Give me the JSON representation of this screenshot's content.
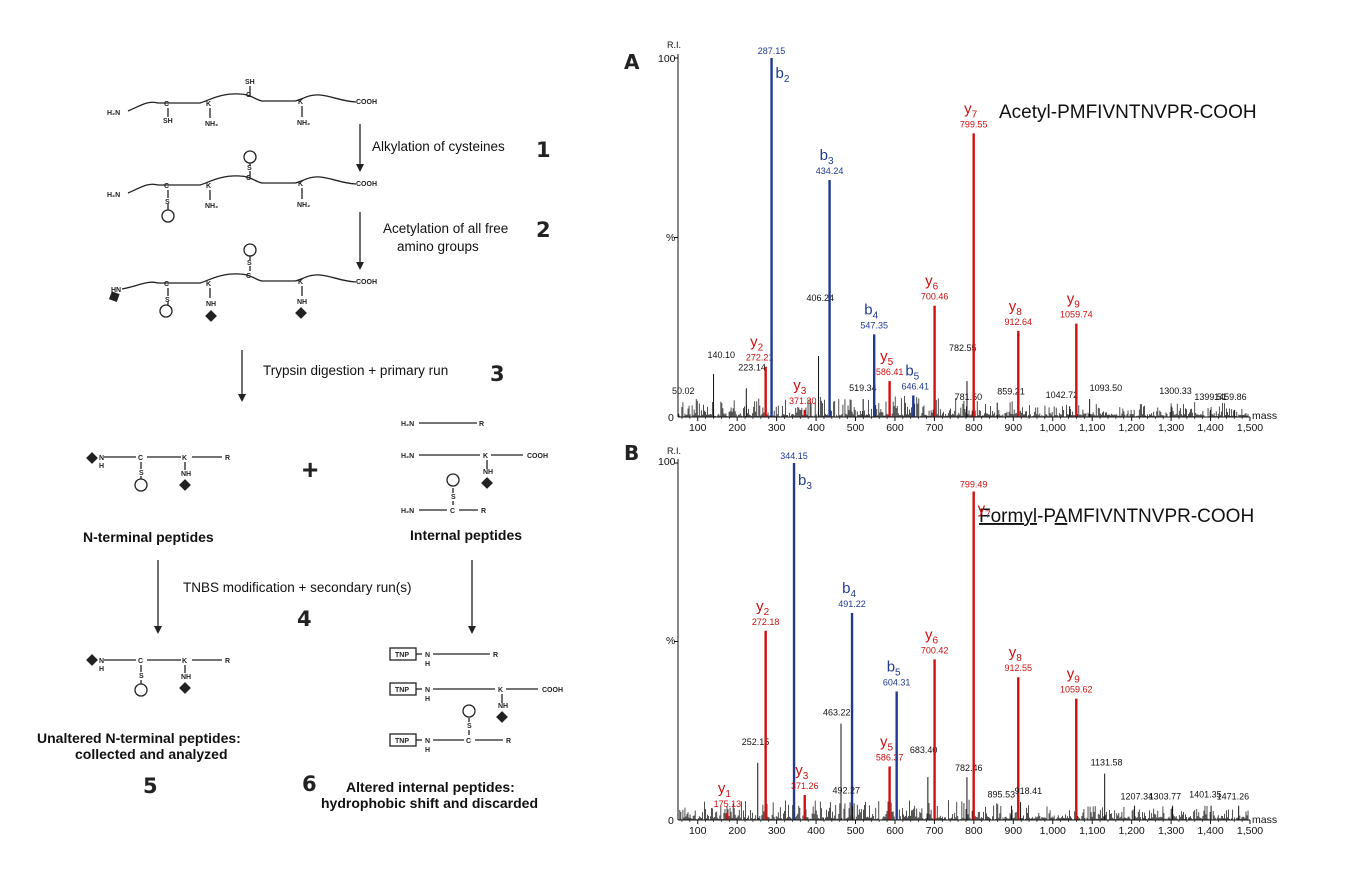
{
  "scheme": {
    "peptide_labels": {
      "h2n": "H₂N",
      "cooh": "COOH",
      "sh": "SH",
      "s": "S",
      "nh2": "NH₂",
      "nh": "NH",
      "hn": "HN",
      "c": "C",
      "k": "K",
      "r": "R",
      "n": "N",
      "h": "H",
      "tnp": "TNP"
    },
    "steps": [
      {
        "num": "1",
        "lines": [
          "Alkylation of cysteines"
        ]
      },
      {
        "num": "2",
        "lines": [
          "Acetylation of all free",
          "amino groups"
        ]
      },
      {
        "num": "3",
        "lines": [
          "Trypsin digestion + primary run"
        ]
      },
      {
        "num": "4",
        "lines": [
          "TNBS modification + secondary run(s)"
        ]
      }
    ],
    "plus": "+",
    "nterm_title": "N-terminal peptides",
    "internal_title": "Internal peptides",
    "unaltered_lines": [
      "Unaltered N-terminal peptides:",
      "collected and analyzed"
    ],
    "unaltered_num": "5",
    "altered_num": "6",
    "altered_lines": [
      "Altered internal peptides:",
      "hydrophobic shift and discarded"
    ]
  },
  "chart_data": [
    {
      "type": "bar",
      "panel": "A",
      "title": "Acetyl-PMFIVNTNVPR-COOH",
      "xlabel": "mass",
      "ylabel": "R.I.",
      "ylabel_mid": "%",
      "xlim": [
        50,
        1500
      ],
      "ylim": [
        0,
        100
      ],
      "y_ticks": [
        "100",
        "0"
      ],
      "x_ticks": [
        "100",
        "200",
        "300",
        "400",
        "500",
        "600",
        "700",
        "800",
        "900",
        "1,000",
        "1,100",
        "1,200",
        "1,300",
        "1,400",
        "1,500"
      ],
      "x_tick_values": [
        100,
        200,
        300,
        400,
        500,
        600,
        700,
        800,
        900,
        1000,
        1100,
        1200,
        1300,
        1400,
        1500
      ],
      "colors": {
        "b": "#1f3a93",
        "y": "#d01010",
        "other": "#111111"
      },
      "peaks": [
        {
          "mz": 50.02,
          "ri": 3,
          "label": "50.02",
          "kind": "other"
        },
        {
          "mz": 140.1,
          "ri": 12,
          "label": "140.10",
          "kind": "other"
        },
        {
          "mz": 223.14,
          "ri": 8,
          "label": "223.14",
          "kind": "other"
        },
        {
          "mz": 272.21,
          "ri": 14,
          "label": "272.21",
          "kind": "y",
          "ion": "y",
          "sub": "2"
        },
        {
          "mz": 287.15,
          "ri": 100,
          "label": "287.15",
          "kind": "b",
          "ion": "b",
          "sub": "2"
        },
        {
          "mz": 371.3,
          "ri": 2,
          "label": "371.30",
          "kind": "y",
          "ion": "y",
          "sub": "3"
        },
        {
          "mz": 406.24,
          "ri": 17,
          "label": "406.24",
          "kind": "other"
        },
        {
          "mz": 434.24,
          "ri": 66,
          "label": "434.24",
          "kind": "b",
          "ion": "b",
          "sub": "3"
        },
        {
          "mz": 519.34,
          "ri": 5,
          "label": "519.34",
          "kind": "other"
        },
        {
          "mz": 547.35,
          "ri": 23,
          "label": "547.35",
          "kind": "b",
          "ion": "b",
          "sub": "4"
        },
        {
          "mz": 586.41,
          "ri": 10,
          "label": "586.41",
          "kind": "y",
          "ion": "y",
          "sub": "5"
        },
        {
          "mz": 646.41,
          "ri": 6,
          "label": "646.41",
          "kind": "b",
          "ion": "b",
          "sub": "5"
        },
        {
          "mz": 700.46,
          "ri": 31,
          "label": "700.46",
          "kind": "y",
          "ion": "y",
          "sub": "6"
        },
        {
          "mz": 781.5,
          "ri": 3,
          "label": "781.50",
          "kind": "other"
        },
        {
          "mz": 782.55,
          "ri": 10,
          "label": "782.55",
          "kind": "other"
        },
        {
          "mz": 799.55,
          "ri": 79,
          "label": "799.55",
          "kind": "y",
          "ion": "y",
          "sub": "7"
        },
        {
          "mz": 859.21,
          "ri": 4,
          "label": "859.21",
          "kind": "other"
        },
        {
          "mz": 912.64,
          "ri": 24,
          "label": "912.64",
          "kind": "y",
          "ion": "y",
          "sub": "8"
        },
        {
          "mz": 1042.72,
          "ri": 3,
          "label": "1042.72",
          "kind": "other"
        },
        {
          "mz": 1059.74,
          "ri": 26,
          "label": "1059.74",
          "kind": "y",
          "ion": "y",
          "sub": "9"
        },
        {
          "mz": 1093.5,
          "ri": 5,
          "label": "1093.50",
          "kind": "other"
        },
        {
          "mz": 1300.33,
          "ri": 3,
          "label": "1300.33",
          "kind": "other"
        },
        {
          "mz": 1399.51,
          "ri": 2,
          "label": "1399.51",
          "kind": "other"
        },
        {
          "mz": 1459.86,
          "ri": 2,
          "label": "1459.86",
          "kind": "other"
        }
      ]
    },
    {
      "type": "bar",
      "panel": "B",
      "title_underlined": "Formyl",
      "title_mid": "-P",
      "title_underlined2": "A",
      "title_rest": "MFIVNTNVPR-COOH",
      "xlabel": "mass",
      "ylabel": "R.I.",
      "ylabel_mid": "%",
      "xlim": [
        50,
        1500
      ],
      "ylim": [
        0,
        100
      ],
      "y_ticks": [
        "100",
        "0"
      ],
      "x_ticks": [
        "100",
        "200",
        "300",
        "400",
        "500",
        "600",
        "700",
        "800",
        "900",
        "1,000",
        "1,100",
        "1,200",
        "1,300",
        "1,400",
        "1,500"
      ],
      "x_tick_values": [
        100,
        200,
        300,
        400,
        500,
        600,
        700,
        800,
        900,
        1000,
        1100,
        1200,
        1300,
        1400,
        1500
      ],
      "colors": {
        "b": "#1f3a93",
        "y": "#d01010",
        "other": "#111111"
      },
      "peaks": [
        {
          "mz": 175.13,
          "ri": 2,
          "label": "175.13",
          "kind": "y",
          "ion": "y",
          "sub": "1"
        },
        {
          "mz": 252.15,
          "ri": 16,
          "label": "252.15",
          "kind": "other"
        },
        {
          "mz": 272.18,
          "ri": 53,
          "label": "272.18",
          "kind": "y",
          "ion": "y",
          "sub": "2"
        },
        {
          "mz": 344.15,
          "ri": 100,
          "label": "344.15",
          "kind": "b",
          "ion": "b",
          "sub": "3"
        },
        {
          "mz": 371.26,
          "ri": 7,
          "label": "371.26",
          "kind": "y",
          "ion": "y",
          "sub": "3"
        },
        {
          "mz": 463.22,
          "ri": 27,
          "label": "463.22",
          "kind": "other"
        },
        {
          "mz": 491.22,
          "ri": 58,
          "label": "491.22",
          "kind": "b",
          "ion": "b",
          "sub": "4"
        },
        {
          "mz": 492.27,
          "ri": 4,
          "label": "492.27",
          "kind": "other"
        },
        {
          "mz": 586.37,
          "ri": 15,
          "label": "586.37",
          "kind": "y",
          "ion": "y",
          "sub": "5"
        },
        {
          "mz": 604.31,
          "ri": 36,
          "label": "604.31",
          "kind": "b",
          "ion": "b",
          "sub": "5"
        },
        {
          "mz": 683.4,
          "ri": 12,
          "label": "683.40",
          "kind": "other"
        },
        {
          "mz": 700.42,
          "ri": 45,
          "label": "700.42",
          "kind": "y",
          "ion": "y",
          "sub": "6"
        },
        {
          "mz": 782.46,
          "ri": 12,
          "label": "782.46",
          "kind": "other"
        },
        {
          "mz": 799.49,
          "ri": 92,
          "label": "799.49",
          "kind": "y",
          "ion": "y",
          "sub": "7"
        },
        {
          "mz": 895.53,
          "ri": 4,
          "label": "895.53",
          "kind": "other"
        },
        {
          "mz": 912.55,
          "ri": 40,
          "label": "912.55",
          "kind": "y",
          "ion": "y",
          "sub": "8"
        },
        {
          "mz": 918.41,
          "ri": 5,
          "label": "918.41",
          "kind": "other"
        },
        {
          "mz": 1059.62,
          "ri": 34,
          "label": "1059.62",
          "kind": "y",
          "ion": "y",
          "sub": "9"
        },
        {
          "mz": 1131.58,
          "ri": 13,
          "label": "1131.58",
          "kind": "other"
        },
        {
          "mz": 1207.34,
          "ri": 4,
          "label": "1207.34",
          "kind": "other"
        },
        {
          "mz": 1303.77,
          "ri": 4,
          "label": "1303.77",
          "kind": "other"
        },
        {
          "mz": 1401.35,
          "ri": 4,
          "label": "1401.35",
          "kind": "other"
        },
        {
          "mz": 1471.26,
          "ri": 4,
          "label": "1471.26",
          "kind": "other"
        }
      ]
    }
  ]
}
